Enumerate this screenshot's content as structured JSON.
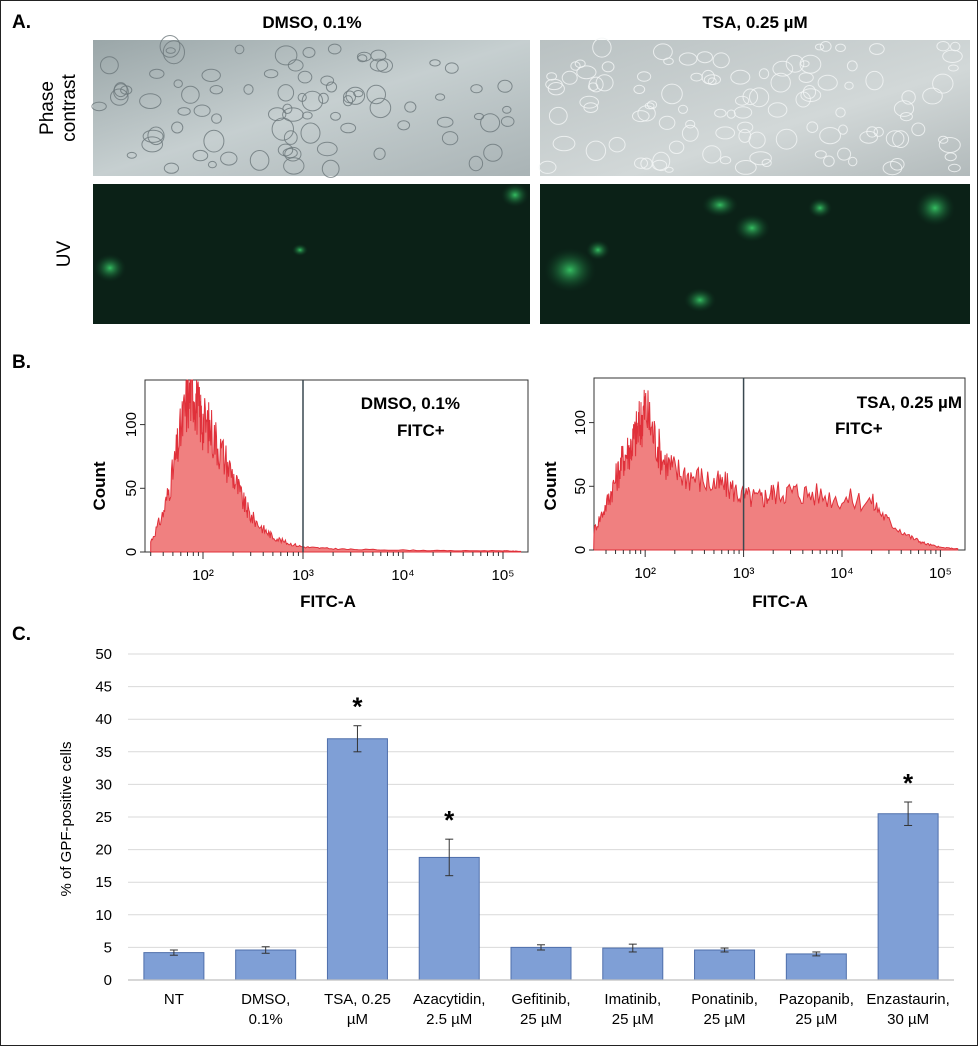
{
  "panel_a": {
    "letter": "A.",
    "columns": [
      "DMSO, 0.1%",
      "TSA, 0.25 µM"
    ],
    "rows": [
      "Phase contrast",
      "UV"
    ],
    "row_lines": [
      [
        "Phase",
        "contrast"
      ],
      [
        "UV"
      ]
    ]
  },
  "panel_b": {
    "letter": "B.",
    "histograms": [
      {
        "gate_label": [
          "DMSO, 0.1%",
          "FITC+"
        ],
        "xlabel": "FITC-A",
        "ylabel": "Count",
        "yticks": [
          0,
          50,
          100
        ],
        "xticks": [
          "10^2",
          "10^3",
          "10^4",
          "10^5"
        ],
        "gate_threshold": 1000
      },
      {
        "gate_label": [
          "TSA, 0.25 µM",
          "FITC+"
        ],
        "xlabel": "FITC-A",
        "ylabel": "Count",
        "yticks": [
          0,
          50,
          100
        ],
        "xticks": [
          "10^2",
          "10^3",
          "10^4",
          "10^5"
        ],
        "gate_threshold": 1000
      }
    ]
  },
  "panel_c": {
    "letter": "C."
  },
  "chart_data": [
    {
      "type": "area",
      "xscale": "log",
      "xlabel": "FITC-A",
      "ylabel": "Count",
      "ylim": [
        0,
        135
      ],
      "x": [
        30,
        40,
        50,
        60,
        70,
        80,
        90,
        100,
        120,
        150,
        200,
        250,
        300,
        400,
        500,
        700,
        1000,
        1500,
        3000,
        10000,
        30000,
        100000,
        150000
      ],
      "y": [
        8,
        30,
        62,
        95,
        120,
        128,
        110,
        102,
        96,
        80,
        60,
        40,
        28,
        18,
        12,
        7,
        4,
        3,
        2,
        1.5,
        1,
        1,
        0.5
      ],
      "gate_threshold": 1000,
      "gate_text": [
        "DMSO, 0.1%",
        "FITC+"
      ],
      "xticks": [
        "10^2",
        "10^3",
        "10^4",
        "10^5"
      ],
      "yticks": [
        0,
        50,
        100
      ]
    },
    {
      "type": "area",
      "xscale": "log",
      "xlabel": "FITC-A",
      "ylabel": "Count",
      "ylim": [
        0,
        135
      ],
      "x": [
        30,
        40,
        50,
        60,
        70,
        80,
        90,
        100,
        120,
        150,
        200,
        300,
        500,
        700,
        1000,
        1500,
        2000,
        3000,
        5000,
        10000,
        20000,
        30000,
        50000,
        70000,
        100000,
        150000
      ],
      "y": [
        15,
        35,
        55,
        72,
        80,
        90,
        100,
        112,
        92,
        72,
        62,
        58,
        52,
        50,
        42,
        40,
        45,
        46,
        44,
        40,
        38,
        22,
        10,
        5,
        2,
        1
      ],
      "gate_threshold": 1000,
      "gate_text": [
        "TSA, 0.25 µM",
        "FITC+"
      ],
      "xticks": [
        "10^2",
        "10^3",
        "10^4",
        "10^5"
      ],
      "yticks": [
        0,
        50,
        100
      ]
    },
    {
      "type": "bar",
      "categories": [
        [
          "NT"
        ],
        [
          "DMSO,",
          "0.1%"
        ],
        [
          "TSA, 0.25",
          "µM"
        ],
        [
          "Azacytidin,",
          "2.5 µM"
        ],
        [
          "Gefitinib,",
          "25 µM"
        ],
        [
          "Imatinib,",
          "25 µM"
        ],
        [
          "Ponatinib,",
          "25 µM"
        ],
        [
          "Pazopanib,",
          "25 µM"
        ],
        [
          "Enzastaurin,",
          "30 µM"
        ]
      ],
      "values": [
        4.2,
        4.6,
        37.0,
        18.8,
        5.0,
        4.9,
        4.6,
        4.0,
        25.5
      ],
      "errors": [
        0.4,
        0.5,
        2.0,
        2.8,
        0.4,
        0.6,
        0.3,
        0.3,
        1.8
      ],
      "significant": [
        false,
        false,
        true,
        true,
        false,
        false,
        false,
        false,
        true
      ],
      "significance_marker": "*",
      "ylabel": "% of GPF-positive cells",
      "ylim": [
        0,
        50
      ],
      "yticks": [
        0,
        5,
        10,
        15,
        20,
        25,
        30,
        35,
        40,
        45,
        50
      ],
      "grid": true,
      "colors": {
        "bar": "#7f9fd6",
        "bar_edge": "#4f6fab",
        "grid": "#d9d9d9"
      }
    }
  ],
  "colors": {
    "histogram_fill": "#f08080",
    "histogram_line": "#e0303a",
    "gate_line": "#3a4850"
  }
}
